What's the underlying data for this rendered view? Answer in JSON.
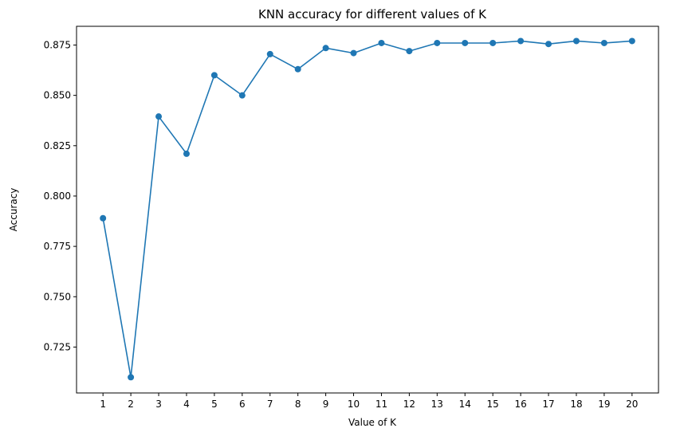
{
  "chart_data": {
    "type": "line",
    "title": "KNN accuracy for different values of K",
    "xlabel": "Value of K",
    "ylabel": "Accuracy",
    "x": [
      1,
      2,
      3,
      4,
      5,
      6,
      7,
      8,
      9,
      10,
      11,
      12,
      13,
      14,
      15,
      16,
      17,
      18,
      19,
      20
    ],
    "xticks": [
      "1",
      "2",
      "3",
      "4",
      "5",
      "6",
      "7",
      "8",
      "9",
      "10",
      "11",
      "12",
      "13",
      "14",
      "15",
      "16",
      "17",
      "18",
      "19",
      "20"
    ],
    "yticks": [
      "0.725",
      "0.750",
      "0.775",
      "0.800",
      "0.825",
      "0.850",
      "0.875"
    ],
    "xlim": [
      0.05,
      20.95
    ],
    "ylim": [
      0.7022,
      0.8843
    ],
    "grid": false,
    "color": "#1f77b4",
    "series": [
      {
        "marker": "circle",
        "values": [
          0.789,
          0.71,
          0.8395,
          0.821,
          0.86,
          0.85,
          0.8705,
          0.863,
          0.8735,
          0.871,
          0.876,
          0.872,
          0.876,
          0.876,
          0.876,
          0.877,
          0.8755,
          0.877,
          0.876,
          0.877
        ]
      }
    ]
  }
}
